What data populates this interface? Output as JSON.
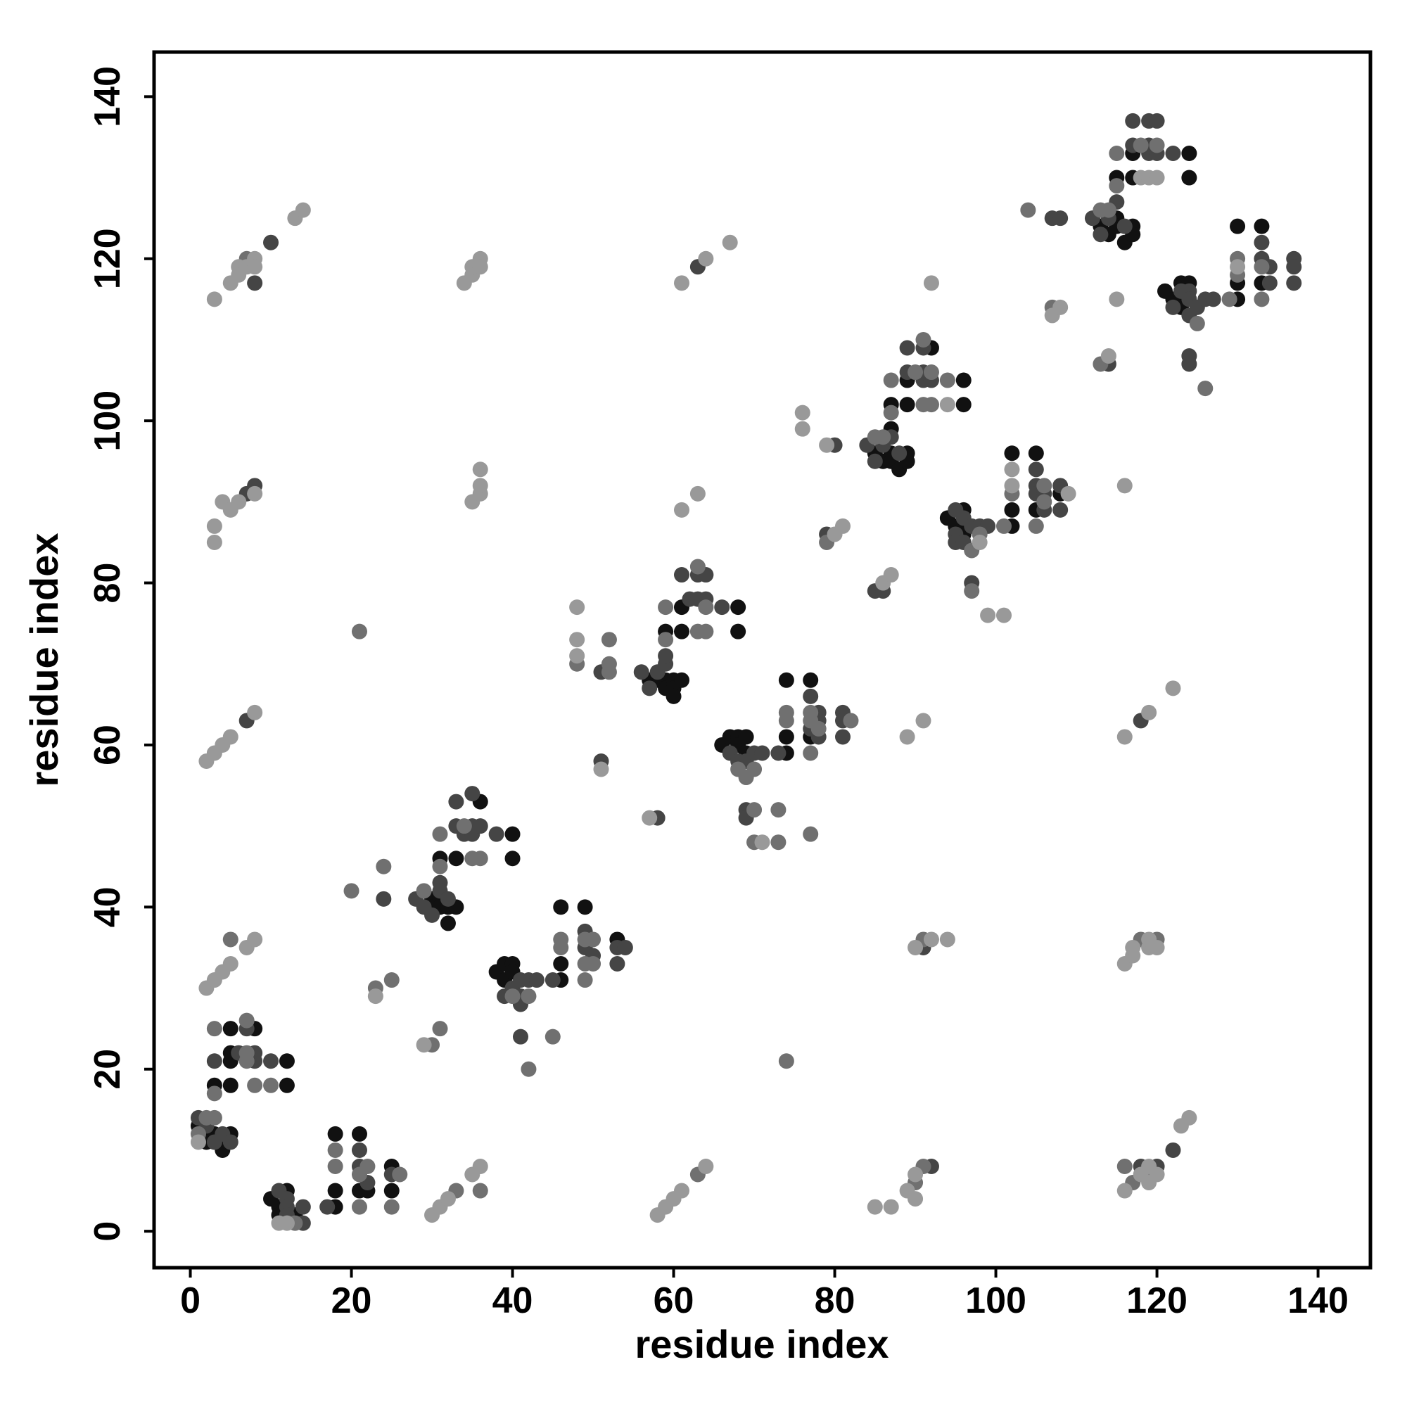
{
  "chart_data": {
    "type": "scatter",
    "x_label": "residue index",
    "y_label": "residue index",
    "xlim": [
      -4.5,
      146.5
    ],
    "ylim": [
      -4.5,
      145.5
    ],
    "xticks": [
      0,
      20,
      40,
      60,
      80,
      100,
      120,
      140
    ],
    "yticks": [
      0,
      20,
      40,
      60,
      80,
      100,
      120,
      140
    ],
    "series": [
      {
        "color": "#111111",
        "x": [
          1,
          2,
          3,
          5,
          2,
          4,
          4,
          3,
          5,
          5,
          5,
          5,
          8,
          12,
          12,
          10,
          12,
          11,
          11,
          13,
          18,
          18,
          18,
          21,
          21,
          22,
          25,
          25,
          30,
          30,
          31,
          31,
          32,
          32,
          33,
          31,
          33,
          36,
          40,
          40,
          38,
          39,
          39,
          40,
          40,
          46,
          46,
          46,
          49,
          53,
          57,
          58,
          59,
          59,
          60,
          60,
          60,
          61,
          59,
          61,
          61,
          68,
          68,
          66,
          67,
          68,
          68,
          69,
          69,
          74,
          74,
          74,
          77,
          77,
          85,
          86,
          87,
          87,
          87,
          87,
          88,
          89,
          89,
          89,
          89,
          92,
          96,
          96,
          94,
          95,
          96,
          96,
          96,
          102,
          102,
          102,
          105,
          105,
          108,
          113,
          114,
          115,
          115,
          115,
          116,
          117,
          117,
          117,
          117,
          124,
          124,
          121,
          122,
          123,
          123,
          123,
          124,
          130,
          130,
          130,
          133,
          133
        ],
        "values": [
          13,
          12,
          12,
          12,
          11,
          11,
          10,
          18,
          25,
          22,
          21,
          18,
          25,
          21,
          18,
          4,
          5,
          3,
          2,
          2,
          3,
          5,
          12,
          12,
          5,
          5,
          8,
          5,
          41,
          40,
          41,
          40,
          40,
          38,
          40,
          46,
          46,
          53,
          49,
          46,
          32,
          31,
          33,
          33,
          32,
          31,
          33,
          40,
          40,
          36,
          68,
          68,
          68,
          67,
          68,
          67,
          66,
          68,
          74,
          74,
          77,
          77,
          74,
          60,
          61,
          61,
          60,
          59,
          61,
          59,
          61,
          68,
          68,
          61,
          96,
          95,
          99,
          96,
          95,
          102,
          94,
          96,
          95,
          102,
          105,
          109,
          105,
          102,
          88,
          87,
          89,
          87,
          86,
          87,
          89,
          96,
          96,
          89,
          91,
          124,
          123,
          125,
          124,
          130,
          122,
          124,
          123,
          130,
          133,
          133,
          130,
          116,
          115,
          117,
          115,
          114,
          117,
          115,
          117,
          124,
          124,
          117
        ]
      },
      {
        "color": "#454545",
        "x": [
          1,
          2,
          4,
          3,
          5,
          3,
          6,
          7,
          8,
          8,
          10,
          7,
          7,
          8,
          8,
          10,
          11,
          12,
          12,
          12,
          14,
          14,
          17,
          21,
          21,
          22,
          25,
          24,
          28,
          29,
          30,
          31,
          31,
          32,
          33,
          33,
          34,
          35,
          35,
          35,
          36,
          38,
          39,
          40,
          41,
          41,
          41,
          42,
          43,
          41,
          45,
          49,
          49,
          50,
          53,
          53,
          54,
          51,
          51,
          58,
          63,
          56,
          57,
          58,
          59,
          59,
          61,
          62,
          63,
          63,
          64,
          64,
          66,
          67,
          68,
          69,
          70,
          71,
          69,
          69,
          73,
          77,
          77,
          78,
          78,
          78,
          81,
          81,
          81,
          80,
          79,
          85,
          86,
          92,
          91,
          84,
          85,
          86,
          87,
          88,
          89,
          89,
          91,
          91,
          91,
          92,
          95,
          95,
          95,
          96,
          96,
          97,
          98,
          99,
          97,
          105,
          105,
          105,
          106,
          106,
          108,
          108,
          107,
          108,
          114,
          118,
          118,
          120,
          122,
          112,
          113,
          114,
          115,
          116,
          117,
          117,
          119,
          119,
          119,
          120,
          120,
          122,
          122,
          123,
          124,
          124,
          124,
          125,
          126,
          127,
          124,
          124,
          133,
          133,
          134,
          134,
          137,
          137,
          137
        ],
        "values": [
          14,
          13,
          12,
          11,
          11,
          21,
          22,
          25,
          22,
          21,
          21,
          63,
          91,
          92,
          117,
          122,
          5,
          4,
          3,
          2,
          3,
          1,
          3,
          10,
          8,
          6,
          7,
          41,
          41,
          40,
          39,
          43,
          42,
          41,
          50,
          53,
          49,
          54,
          50,
          49,
          50,
          49,
          29,
          30,
          31,
          29,
          28,
          31,
          31,
          24,
          31,
          37,
          35,
          34,
          35,
          33,
          35,
          69,
          58,
          51,
          119,
          69,
          67,
          69,
          70,
          71,
          81,
          78,
          81,
          78,
          81,
          78,
          77,
          59,
          58,
          58,
          59,
          59,
          52,
          51,
          59,
          66,
          62,
          64,
          63,
          61,
          64,
          63,
          61,
          97,
          86,
          79,
          79,
          8,
          35,
          97,
          95,
          97,
          98,
          96,
          106,
          109,
          109,
          106,
          105,
          105,
          89,
          86,
          85,
          88,
          85,
          87,
          87,
          87,
          80,
          94,
          92,
          91,
          91,
          89,
          92,
          89,
          125,
          125,
          107,
          63,
          8,
          8,
          10,
          125,
          123,
          125,
          127,
          124,
          134,
          137,
          137,
          134,
          133,
          137,
          133,
          133,
          114,
          116,
          116,
          115,
          113,
          114,
          115,
          115,
          108,
          107,
          122,
          120,
          119,
          117,
          120,
          119,
          117
        ]
      },
      {
        "color": "#707070",
        "x": [
          2,
          3,
          1,
          3,
          3,
          7,
          7,
          7,
          8,
          10,
          5,
          7,
          13,
          18,
          18,
          21,
          21,
          22,
          25,
          26,
          20,
          21,
          23,
          24,
          25,
          33,
          36,
          30,
          31,
          29,
          31,
          31,
          34,
          35,
          36,
          40,
          42,
          42,
          45,
          46,
          46,
          49,
          49,
          49,
          50,
          50,
          48,
          52,
          52,
          52,
          63,
          59,
          59,
          63,
          63,
          64,
          64,
          68,
          69,
          70,
          70,
          70,
          73,
          73,
          74,
          74,
          77,
          77,
          77,
          77,
          78,
          82,
          74,
          79,
          90,
          91,
          91,
          85,
          86,
          87,
          87,
          90,
          91,
          91,
          92,
          92,
          94,
          97,
          98,
          97,
          101,
          102,
          105,
          106,
          106,
          104,
          107,
          113,
          117,
          116,
          119,
          118,
          120,
          113,
          114,
          115,
          115,
          118,
          120,
          125,
          126,
          129,
          130,
          130,
          133,
          133
        ],
        "values": [
          14,
          14,
          12,
          17,
          25,
          26,
          22,
          21,
          18,
          18,
          36,
          120,
          1,
          8,
          10,
          7,
          3,
          8,
          3,
          7,
          42,
          74,
          30,
          45,
          31,
          5,
          5,
          23,
          25,
          42,
          45,
          49,
          50,
          46,
          46,
          29,
          29,
          20,
          24,
          36,
          35,
          36,
          33,
          31,
          36,
          33,
          70,
          69,
          73,
          70,
          7,
          73,
          77,
          82,
          74,
          77,
          74,
          57,
          56,
          57,
          52,
          48,
          52,
          48,
          63,
          64,
          64,
          63,
          59,
          49,
          62,
          63,
          21,
          85,
          6,
          8,
          36,
          98,
          98,
          101,
          105,
          106,
          110,
          102,
          106,
          102,
          105,
          84,
          86,
          79,
          87,
          91,
          87,
          92,
          90,
          126,
          114,
          107,
          6,
          8,
          7,
          36,
          36,
          126,
          126,
          129,
          133,
          134,
          134,
          112,
          104,
          115,
          118,
          120,
          119,
          115
        ]
      },
      {
        "color": "#999999",
        "x": [
          1,
          2,
          3,
          4,
          5,
          7,
          8,
          2,
          3,
          4,
          5,
          8,
          3,
          3,
          4,
          5,
          6,
          8,
          3,
          5,
          6,
          6,
          7,
          8,
          8,
          13,
          14,
          11,
          12,
          23,
          30,
          31,
          32,
          35,
          36,
          29,
          34,
          35,
          35,
          36,
          36,
          35,
          36,
          36,
          36,
          48,
          48,
          48,
          51,
          57,
          58,
          59,
          60,
          61,
          64,
          61,
          63,
          61,
          64,
          67,
          71,
          76,
          76,
          79,
          80,
          81,
          86,
          87,
          85,
          87,
          89,
          90,
          90,
          89,
          91,
          90,
          92,
          94,
          92,
          94,
          98,
          99,
          101,
          102,
          102,
          109,
          107,
          108,
          114,
          115,
          116,
          119,
          122,
          116,
          116,
          118,
          119,
          119,
          120,
          123,
          124,
          116,
          117,
          117,
          119,
          119,
          120,
          118,
          119,
          120,
          130
        ],
        "values": [
          11,
          30,
          31,
          32,
          33,
          35,
          36,
          58,
          59,
          60,
          61,
          64,
          85,
          87,
          90,
          89,
          90,
          91,
          115,
          117,
          118,
          119,
          119,
          120,
          119,
          125,
          126,
          1,
          1,
          29,
          2,
          3,
          4,
          7,
          8,
          23,
          117,
          118,
          119,
          120,
          119,
          90,
          91,
          92,
          94,
          77,
          73,
          71,
          57,
          51,
          2,
          3,
          4,
          5,
          8,
          89,
          91,
          117,
          120,
          122,
          48,
          101,
          99,
          97,
          86,
          87,
          80,
          81,
          3,
          3,
          5,
          7,
          4,
          61,
          63,
          35,
          36,
          36,
          117,
          102,
          85,
          76,
          76,
          92,
          94,
          91,
          113,
          114,
          108,
          115,
          61,
          64,
          67,
          92,
          5,
          7,
          8,
          6,
          7,
          13,
          14,
          33,
          34,
          35,
          35,
          36,
          35,
          130,
          130,
          130,
          119
        ]
      }
    ]
  }
}
